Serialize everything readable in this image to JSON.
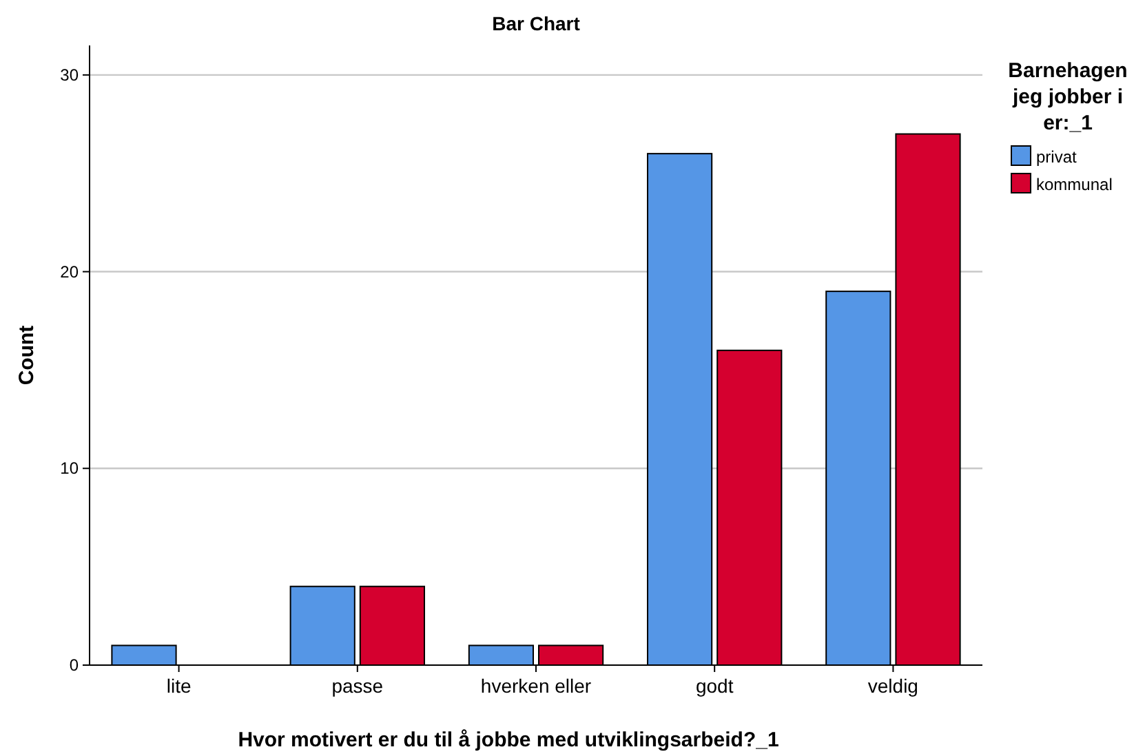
{
  "chart_data": {
    "type": "bar",
    "title": "Bar Chart",
    "xlabel": "Hvor motivert er du til å jobbe med utviklingsarbeid?_1",
    "ylabel": "Count",
    "legend_title": "Barnehagen jeg jobber i er:_1",
    "categories": [
      "lite",
      "passe",
      "hverken eller",
      "godt",
      "veldig"
    ],
    "series": [
      {
        "name": "privat",
        "color": "#5596e6",
        "values": [
          1,
          4,
          1,
          26,
          19
        ]
      },
      {
        "name": "kommunal",
        "color": "#d5002f",
        "values": [
          null,
          4,
          1,
          16,
          27
        ]
      }
    ],
    "ylim": [
      0,
      31.5
    ],
    "yticks": [
      0,
      10,
      20,
      30
    ],
    "grid": "y",
    "legend": "top right"
  }
}
